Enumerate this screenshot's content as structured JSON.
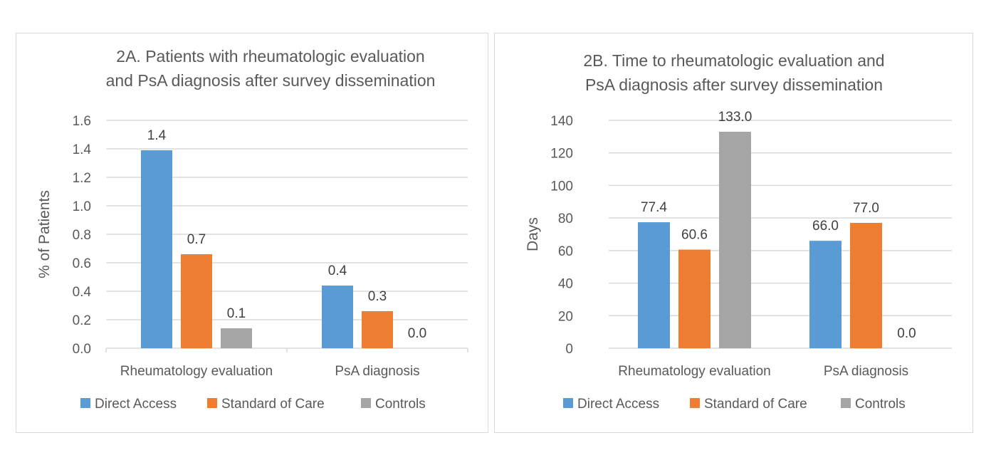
{
  "chart_data": [
    {
      "type": "bar",
      "title": [
        "2A. Patients with rheumatologic evaluation",
        "and PsA diagnosis after survey dissemination"
      ],
      "xlabel": "",
      "ylabel": "% of Patients",
      "ylim": [
        0,
        1.6
      ],
      "yticks": [
        "0.0",
        "0.2",
        "0.4",
        "0.6",
        "0.8",
        "1.0",
        "1.2",
        "1.4",
        "1.6"
      ],
      "ytick_values": [
        0,
        0.2,
        0.4,
        0.6,
        0.8,
        1.0,
        1.2,
        1.4,
        1.6
      ],
      "categories": [
        "Rheumatology evaluation",
        "PsA diagnosis"
      ],
      "category_tick_marks": true,
      "grid": true,
      "legend": "bottom",
      "series": [
        {
          "name": "Direct Access",
          "color": "#5b9bd5",
          "values": [
            1.39,
            0.44
          ],
          "labels": [
            "1.4",
            "0.4"
          ]
        },
        {
          "name": "Standard of Care",
          "color": "#ed7d31",
          "values": [
            0.66,
            0.26
          ],
          "labels": [
            "0.7",
            "0.3"
          ]
        },
        {
          "name": "Controls",
          "color": "#a5a5a5",
          "values": [
            0.14,
            0.0
          ],
          "labels": [
            "0.1",
            "0.0"
          ]
        }
      ]
    },
    {
      "type": "bar",
      "title": [
        "2B. Time to rheumatologic evaluation and",
        "PsA diagnosis after survey dissemination"
      ],
      "xlabel": "",
      "ylabel": "Days",
      "ylim": [
        0,
        140
      ],
      "yticks": [
        "0",
        "20",
        "40",
        "60",
        "80",
        "100",
        "120",
        "140"
      ],
      "ytick_values": [
        0,
        20,
        40,
        60,
        80,
        100,
        120,
        140
      ],
      "categories": [
        "Rheumatology evaluation",
        "PsA diagnosis"
      ],
      "category_tick_marks": false,
      "grid": true,
      "legend": "bottom",
      "series": [
        {
          "name": "Direct Access",
          "color": "#5b9bd5",
          "values": [
            77.4,
            66.0
          ],
          "labels": [
            "77.4",
            "66.0"
          ]
        },
        {
          "name": "Standard of Care",
          "color": "#ed7d31",
          "values": [
            60.6,
            77.0
          ],
          "labels": [
            "60.6",
            "77.0"
          ]
        },
        {
          "name": "Controls",
          "color": "#a5a5a5",
          "values": [
            133.0,
            0.0
          ],
          "labels": [
            "133.0",
            "0.0"
          ]
        }
      ]
    }
  ]
}
